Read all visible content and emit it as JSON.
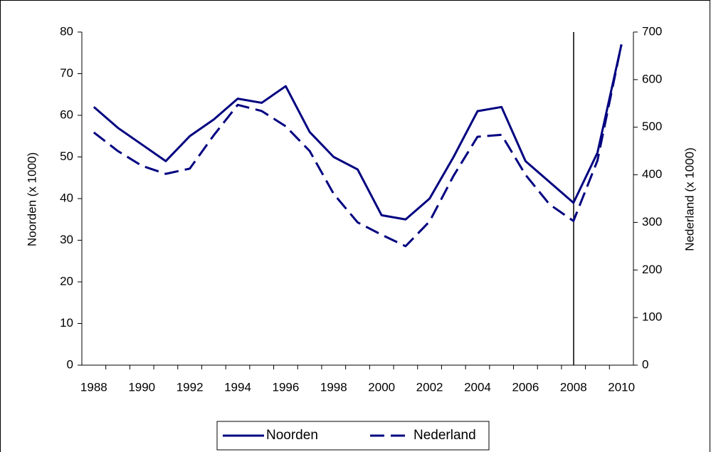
{
  "chart_data": {
    "type": "line",
    "categories": [
      "1988",
      null,
      "1990",
      null,
      "1992",
      null,
      "1994",
      null,
      "1996",
      null,
      "1998",
      null,
      "2000",
      null,
      "2002",
      null,
      "2004",
      null,
      "2006",
      null,
      "2008",
      null,
      "2010"
    ],
    "series": [
      {
        "name": "Noorden",
        "color": "#000080",
        "axis": "y",
        "dash": false,
        "values": [
          62,
          57,
          53,
          49,
          55,
          59,
          64,
          63,
          67,
          56,
          50,
          47,
          36,
          35,
          40,
          50,
          61,
          62,
          49,
          44,
          39,
          51,
          77
        ]
      },
      {
        "name": "Nederland",
        "color": "#000080",
        "axis": "y2",
        "dash": true,
        "values": [
          489,
          450,
          419,
          402,
          413,
          483,
          547,
          534,
          502,
          450,
          360,
          300,
          274,
          250,
          302,
          398,
          480,
          484,
          400,
          338,
          303,
          430,
          674
        ]
      }
    ],
    "ylabel": "Noorden (x 1000)",
    "y2label": "Nederland (x 1000)",
    "ylim": [
      0,
      80
    ],
    "yticks": [
      0,
      10,
      20,
      30,
      40,
      50,
      60,
      70,
      80
    ],
    "y2lim": [
      0,
      700
    ],
    "y2ticks": [
      0,
      100,
      200,
      300,
      400,
      500,
      600,
      700
    ],
    "legend": "bottom"
  }
}
